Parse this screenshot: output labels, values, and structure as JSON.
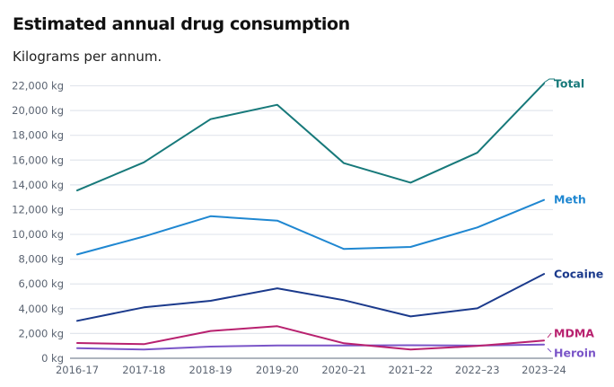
{
  "chart_data": {
    "type": "line",
    "title": "Estimated annual drug consumption",
    "subtitle": "Kilograms per annum.",
    "xlabel": "",
    "ylabel": "",
    "categories": [
      "2016-17",
      "2017-18",
      "2018-19",
      "2019-20",
      "2020–21",
      "2021–22",
      "2022–23",
      "2023–24"
    ],
    "ylim": [
      0,
      22000
    ],
    "yticks": [
      0,
      2000,
      4000,
      6000,
      8000,
      10000,
      12000,
      14000,
      16000,
      18000,
      20000,
      22000
    ],
    "ytick_labels": [
      "0 kg",
      "2,000 kg",
      "4,000 kg",
      "6,000 kg",
      "8,000 kg",
      "10,000 kg",
      "12,000 kg",
      "14,000 kg",
      "16,000 kg",
      "18,000 kg",
      "20,000 kg",
      "22,000 kg"
    ],
    "grid": true,
    "legend": "direct labels at right end of lines",
    "series": [
      {
        "name": "Total",
        "color": "#17797a",
        "values": [
          13550,
          15820,
          19300,
          20460,
          15750,
          14180,
          16590,
          22190
        ]
      },
      {
        "name": "Meth",
        "color": "#1f87d1",
        "values": [
          8380,
          9830,
          11470,
          11110,
          8820,
          8990,
          10560,
          12780
        ]
      },
      {
        "name": "Cocaine",
        "color": "#1b3a8c",
        "values": [
          3020,
          4110,
          4640,
          5650,
          4690,
          3380,
          4030,
          6810
        ]
      },
      {
        "name": "MDMA",
        "color": "#b8216f",
        "values": [
          1230,
          1140,
          2200,
          2590,
          1210,
          700,
          990,
          1430
        ]
      },
      {
        "name": "Heroin",
        "color": "#7a55c8",
        "values": [
          820,
          700,
          940,
          1040,
          1040,
          1050,
          1020,
          1110
        ]
      }
    ]
  }
}
